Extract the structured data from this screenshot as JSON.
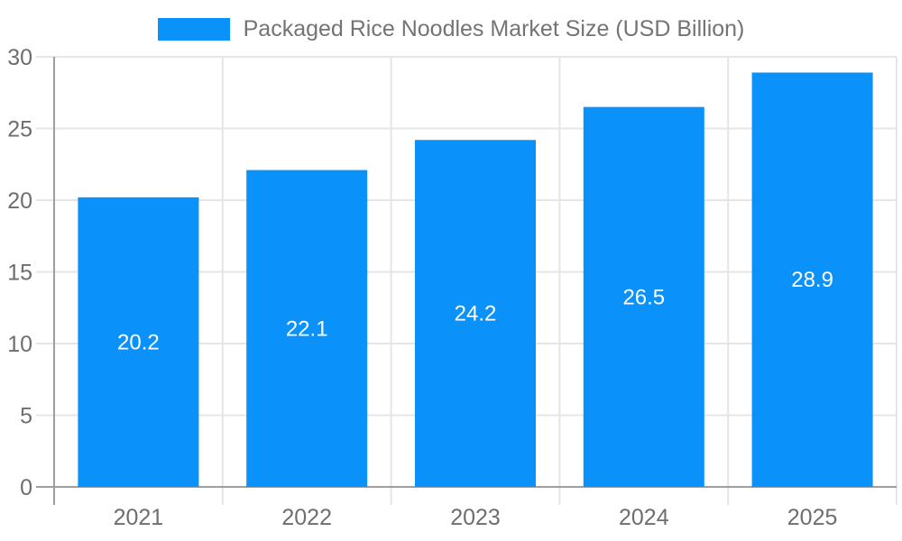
{
  "legend": {
    "label": "Packaged Rice Noodles Market Size (USD Billion)"
  },
  "chart_data": {
    "type": "bar",
    "title": "Packaged Rice Noodles Market Size (USD Billion)",
    "categories": [
      "2021",
      "2022",
      "2023",
      "2024",
      "2025"
    ],
    "values": [
      20.2,
      22.1,
      24.2,
      26.5,
      28.9
    ],
    "xlabel": "",
    "ylabel": "",
    "ylim": [
      0,
      30
    ],
    "yticks": [
      0,
      5,
      10,
      15,
      20,
      25,
      30
    ],
    "grid": true,
    "legend_position": "top",
    "value_labels_inside_bars": true,
    "colors": {
      "bar": "#0a91fa",
      "grid_line": "#e5e5e5",
      "axis_line": "#9e9e9e",
      "tick_label": "#6e6e6e",
      "legend_text": "#747474",
      "value_label": "#ffffff",
      "background": "#ffffff"
    }
  }
}
